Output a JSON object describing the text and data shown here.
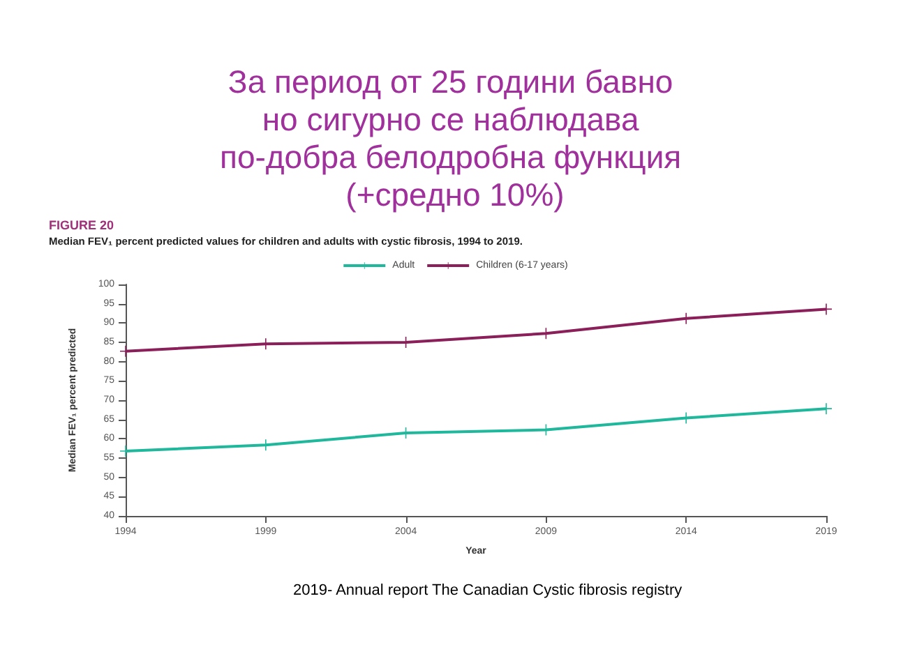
{
  "chart_data": {
    "type": "line",
    "title": "За период от 25 години бавно но сигурно се наблюдава по-добра белодробна функция (+средно 10%)",
    "subtitle": "Median FEV₁ percent predicted values for children and adults with cystic fibrosis, 1994 to 2019.",
    "xlabel": "Year",
    "ylabel": "Median FEV₁ percent predicted",
    "annotations": [
      "FIGURE 20",
      "2019- Annual report The Canadian Cystic fibrosis registry"
    ],
    "categories": [
      "1994",
      "1999",
      "2004",
      "2009",
      "2014",
      "2019"
    ],
    "series": [
      {
        "name": "Adult",
        "color": "#1fb89c",
        "values": [
          56.8,
          58.4,
          61.5,
          62.3,
          65.4,
          67.8
        ]
      },
      {
        "name": "Children (6-17 years)",
        "color": "#8b1f5a",
        "values": [
          82.7,
          84.6,
          85.0,
          87.3,
          91.2,
          93.6
        ]
      }
    ],
    "ylim": [
      40,
      100
    ],
    "yticks": [
      40,
      45,
      50,
      55,
      60,
      65,
      70,
      75,
      80,
      85,
      90,
      95,
      100
    ],
    "grid": false,
    "legend": "top",
    "marker": "cross",
    "line_style": "solid"
  }
}
